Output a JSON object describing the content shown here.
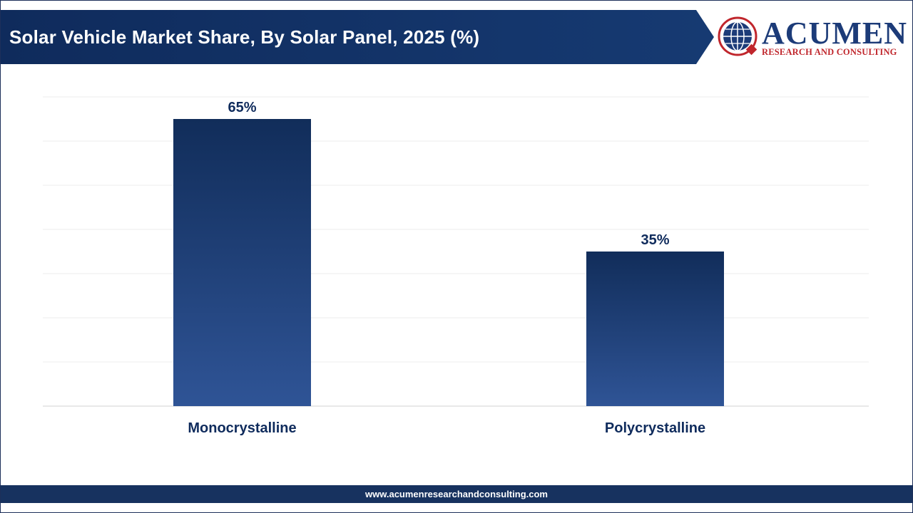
{
  "header": {
    "title": "Solar Vehicle Market Share, By Solar Panel, 2025 (%)"
  },
  "logo": {
    "name": "ACUMEN",
    "subtitle": "RESEARCH AND CONSULTING",
    "icon": "globe-icon"
  },
  "footer": {
    "url": "www.acumenresearchandconsulting.com"
  },
  "colors": {
    "title_bar": "#0f2b5c",
    "bar_top": "#112d5a",
    "bar_bottom": "#2f5496",
    "label": "#0f2b5c",
    "logo_red": "#c0262c",
    "logo_blue": "#1c3b78"
  },
  "chart_data": {
    "type": "bar",
    "title": "Solar Vehicle Market Share, By Solar Panel, 2025 (%)",
    "categories": [
      "Monocrystalline",
      "Polycrystalline"
    ],
    "values": [
      65,
      35
    ],
    "data_labels": [
      "65%",
      "35%"
    ],
    "ylim": [
      0,
      70
    ],
    "grid": true,
    "legend": "none"
  }
}
